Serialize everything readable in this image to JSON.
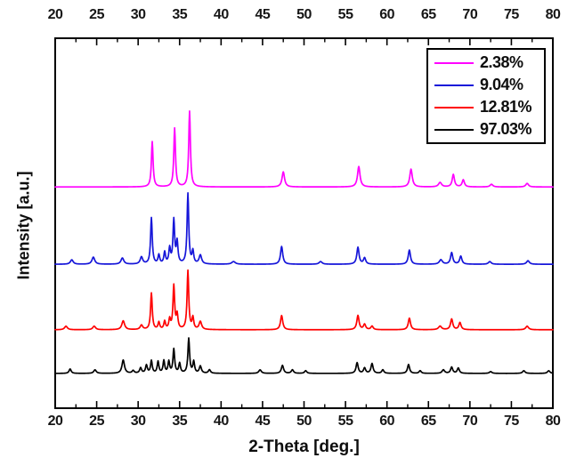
{
  "figure": {
    "xlabel": "2-Theta [deg.]",
    "ylabel": "Intensity [a.u.]"
  },
  "chart_data": {
    "type": "line",
    "title": "",
    "subtitle": "",
    "xlabel": "2-Theta [deg.]",
    "ylabel": "Intensity [a.u.]",
    "x_range": [
      20,
      80
    ],
    "x_ticks": [
      20,
      25,
      30,
      35,
      40,
      45,
      50,
      55,
      60,
      65,
      70,
      75,
      80
    ],
    "x_minor_tick_step": 2.5,
    "y_ticks": [],
    "y_axis_type": "arbitrary-intensity-stacked-offsets",
    "grid": false,
    "legend_position": "top-right-inside",
    "peak_format": "[two_theta_deg, relative_height, optional_hwhm_deg] (Lorentzian peaks on flat baseline)",
    "default_peak_hwhm_deg": 0.12,
    "series": [
      {
        "name": "2.38%",
        "color": "#FF00FF",
        "baseline_frac": 0.598,
        "peaks": [
          [
            31.7,
            51
          ],
          [
            34.4,
            66
          ],
          [
            36.2,
            85
          ],
          [
            47.5,
            17,
            0.18
          ],
          [
            56.6,
            23,
            0.18
          ],
          [
            62.9,
            20,
            0.18
          ],
          [
            66.4,
            5,
            0.22
          ],
          [
            68.0,
            14,
            0.16
          ],
          [
            69.2,
            8,
            0.16
          ],
          [
            72.6,
            3,
            0.2
          ],
          [
            76.9,
            4,
            0.2
          ]
        ]
      },
      {
        "name": "9.04%",
        "color": "#1616D9",
        "baseline_frac": 0.389,
        "peaks": [
          [
            22.0,
            5,
            0.2
          ],
          [
            24.6,
            8,
            0.2
          ],
          [
            28.1,
            7,
            0.2
          ],
          [
            30.4,
            8,
            0.18
          ],
          [
            31.6,
            52
          ],
          [
            32.5,
            10
          ],
          [
            33.2,
            13
          ],
          [
            33.8,
            17
          ],
          [
            34.3,
            49
          ],
          [
            34.7,
            24
          ],
          [
            36.0,
            79
          ],
          [
            36.6,
            14
          ],
          [
            37.5,
            10,
            0.18
          ],
          [
            41.5,
            3,
            0.25
          ],
          [
            47.3,
            20,
            0.16
          ],
          [
            52.0,
            3,
            0.22
          ],
          [
            56.5,
            19,
            0.16
          ],
          [
            57.3,
            7,
            0.16
          ],
          [
            62.7,
            16,
            0.16
          ],
          [
            66.5,
            5,
            0.22
          ],
          [
            67.8,
            13,
            0.16
          ],
          [
            68.9,
            9,
            0.16
          ],
          [
            72.4,
            3,
            0.2
          ],
          [
            77.0,
            4,
            0.2
          ]
        ]
      },
      {
        "name": "12.81%",
        "color": "#FF0000",
        "baseline_frac": 0.212,
        "peaks": [
          [
            21.3,
            4,
            0.2
          ],
          [
            24.7,
            4,
            0.2
          ],
          [
            28.2,
            10,
            0.2
          ],
          [
            30.4,
            5,
            0.18
          ],
          [
            31.6,
            41
          ],
          [
            32.5,
            8
          ],
          [
            33.2,
            9
          ],
          [
            33.8,
            11
          ],
          [
            34.3,
            49
          ],
          [
            34.7,
            16
          ],
          [
            36.0,
            66
          ],
          [
            36.6,
            13
          ],
          [
            37.5,
            9,
            0.18
          ],
          [
            47.3,
            16,
            0.16
          ],
          [
            56.5,
            16,
            0.16
          ],
          [
            57.3,
            6,
            0.16
          ],
          [
            58.2,
            4,
            0.16
          ],
          [
            62.7,
            13,
            0.16
          ],
          [
            66.4,
            4,
            0.22
          ],
          [
            67.8,
            12,
            0.16
          ],
          [
            68.8,
            8,
            0.16
          ],
          [
            76.9,
            4,
            0.2
          ]
        ]
      },
      {
        "name": "97.03%",
        "color": "#000000",
        "baseline_frac": 0.094,
        "peaks": [
          [
            21.8,
            5,
            0.15
          ],
          [
            24.8,
            4,
            0.18
          ],
          [
            28.2,
            15,
            0.18
          ],
          [
            29.4,
            3,
            0.15
          ],
          [
            30.3,
            6,
            0.14
          ],
          [
            31.0,
            9,
            0.13
          ],
          [
            31.6,
            14
          ],
          [
            32.4,
            13
          ],
          [
            33.1,
            14
          ],
          [
            33.7,
            13
          ],
          [
            34.3,
            27
          ],
          [
            35.0,
            11
          ],
          [
            36.1,
            39
          ],
          [
            36.7,
            13
          ],
          [
            37.5,
            8,
            0.15
          ],
          [
            38.6,
            4,
            0.15
          ],
          [
            44.7,
            4,
            0.18
          ],
          [
            47.4,
            9,
            0.16
          ],
          [
            48.6,
            4,
            0.16
          ],
          [
            50.2,
            3,
            0.16
          ],
          [
            56.4,
            12,
            0.15
          ],
          [
            57.3,
            6,
            0.15
          ],
          [
            58.2,
            11,
            0.15
          ],
          [
            59.5,
            4,
            0.15
          ],
          [
            62.6,
            10,
            0.15
          ],
          [
            64.0,
            3,
            0.15
          ],
          [
            66.8,
            4,
            0.18
          ],
          [
            67.8,
            7,
            0.15
          ],
          [
            68.6,
            6,
            0.15
          ],
          [
            72.5,
            2,
            0.18
          ],
          [
            76.5,
            3,
            0.18
          ],
          [
            79.5,
            3,
            0.18
          ]
        ]
      }
    ],
    "legend_entries": [
      {
        "label": "2.38%",
        "color": "#FF00FF"
      },
      {
        "label": "9.04%",
        "color": "#1616D9"
      },
      {
        "label": "12.81%",
        "color": "#FF0000"
      },
      {
        "label": "97.03%",
        "color": "#000000"
      }
    ]
  }
}
